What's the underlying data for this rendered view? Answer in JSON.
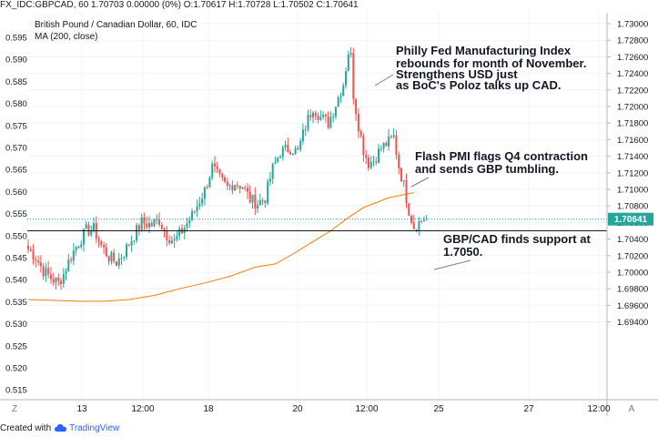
{
  "header": {
    "ohlc_line": "FX_IDC:GBPCAD, 60  1.70703 0.00000 (0%)  O:1.70617 H:1.70728 L:1.70502 C:1.70641",
    "symbol_title": "British Pound / Canadian Dollar, 60, IDC",
    "indicator": "MA (200, close)"
  },
  "left_axis_labels": [
    "0.595",
    "0.590",
    "0.585",
    "0.580",
    "0.575",
    "0.570",
    "0.565",
    "0.560",
    "0.555",
    "0.550",
    "0.545",
    "0.540",
    "0.535",
    "0.530",
    "0.525",
    "0.520",
    "0.515"
  ],
  "right_axis_labels": [
    "1.73000",
    "1.72800",
    "1.72600",
    "1.72400",
    "1.72200",
    "1.72000",
    "1.71800",
    "1.71600",
    "1.71400",
    "1.71200",
    "1.71000",
    "1.70800",
    "1.70600",
    "1.70400",
    "1.70200",
    "1.70000",
    "1.69800",
    "1.69600",
    "1.69400"
  ],
  "x_axis_labels": [
    "13",
    "12:00",
    "18",
    "20",
    "12:00",
    "25",
    "27",
    "12:00"
  ],
  "scale_buttons": {
    "left": "Z",
    "right": "A"
  },
  "price_badge": "1.70641",
  "footer": {
    "created_with": "Created with",
    "brand": "TradingView"
  },
  "colors": {
    "up": "#26a69a",
    "down": "#ef5350",
    "ma": "#f57c00",
    "support": "#131722",
    "price_line": "#26a69a"
  },
  "chart_data": {
    "type": "candlestick",
    "symbol": "FX_IDC:GBPCAD",
    "interval": "60",
    "yrange": [
      1.693,
      1.7315
    ],
    "support_level": 1.705,
    "last_price": 1.70641,
    "annotations": [
      {
        "text": [
          "Philly Fed Manufacturing Index",
          "rebounds for month of November.",
          "Strengthens USD just",
          "as BoC's Poloz talks up CAD."
        ]
      },
      {
        "text": [
          "Flash PMI flags Q4 contraction",
          "and sends GBP tumbling."
        ]
      },
      {
        "text": [
          "GBP/CAD finds support at",
          "1.7050."
        ]
      }
    ],
    "close_path": [
      [
        0,
        1.7028
      ],
      [
        3,
        1.7018
      ],
      [
        6,
        1.7002
      ],
      [
        9,
        1.6993
      ],
      [
        12,
        1.6987
      ],
      [
        14,
        1.6998
      ],
      [
        17,
        1.702
      ],
      [
        20,
        1.7036
      ],
      [
        23,
        1.705
      ],
      [
        26,
        1.7052
      ],
      [
        29,
        1.7032
      ],
      [
        32,
        1.7018
      ],
      [
        35,
        1.7012
      ],
      [
        38,
        1.7024
      ],
      [
        41,
        1.704
      ],
      [
        45,
        1.706
      ],
      [
        49,
        1.7057
      ],
      [
        52,
        1.7063
      ],
      [
        55,
        1.7045
      ],
      [
        58,
        1.7037
      ],
      [
        61,
        1.705
      ],
      [
        65,
        1.7068
      ],
      [
        70,
        1.7099
      ],
      [
        73,
        1.7127
      ],
      [
        76,
        1.7112
      ],
      [
        79,
        1.7102
      ],
      [
        82,
        1.7108
      ],
      [
        85,
        1.7104
      ],
      [
        88,
        1.7088
      ],
      [
        91,
        1.7083
      ],
      [
        94,
        1.709
      ],
      [
        97,
        1.7125
      ],
      [
        100,
        1.7145
      ],
      [
        104,
        1.715
      ],
      [
        107,
        1.7145
      ],
      [
        110,
        1.7177
      ],
      [
        113,
        1.72
      ],
      [
        116,
        1.7187
      ],
      [
        119,
        1.718
      ],
      [
        122,
        1.7203
      ],
      [
        125,
        1.7228
      ],
      [
        127,
        1.7266
      ],
      [
        128,
        1.726
      ],
      [
        129,
        1.7215
      ],
      [
        131,
        1.7178
      ],
      [
        133,
        1.7148
      ],
      [
        135,
        1.7132
      ],
      [
        137,
        1.7135
      ],
      [
        140,
        1.715
      ],
      [
        143,
        1.7157
      ],
      [
        145,
        1.7163
      ],
      [
        147,
        1.7128
      ],
      [
        149,
        1.7105
      ],
      [
        151,
        1.7075
      ],
      [
        153,
        1.7055
      ],
      [
        155,
        1.706
      ],
      [
        157,
        1.7065
      ],
      [
        158,
        1.7064
      ]
    ],
    "ma200_path": [
      [
        0,
        1.6967
      ],
      [
        10,
        1.6966
      ],
      [
        20,
        1.6965
      ],
      [
        30,
        1.6965
      ],
      [
        40,
        1.6967
      ],
      [
        50,
        1.6972
      ],
      [
        60,
        1.698
      ],
      [
        70,
        1.6987
      ],
      [
        80,
        1.6995
      ],
      [
        90,
        1.7006
      ],
      [
        98,
        1.701
      ],
      [
        105,
        1.7022
      ],
      [
        112,
        1.7035
      ],
      [
        120,
        1.705
      ],
      [
        127,
        1.7066
      ],
      [
        133,
        1.7078
      ],
      [
        138,
        1.7084
      ],
      [
        143,
        1.709
      ],
      [
        148,
        1.7093
      ],
      [
        153,
        1.7096
      ]
    ]
  }
}
